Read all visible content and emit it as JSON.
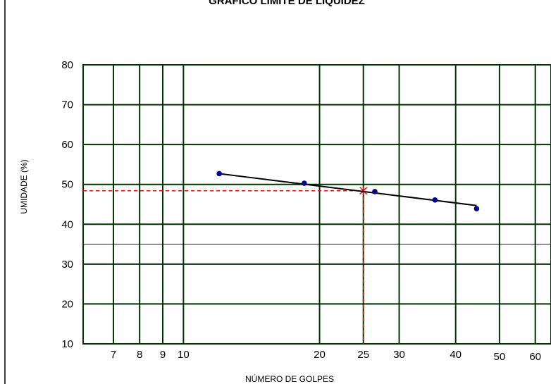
{
  "chart_data": {
    "type": "scatter",
    "title": "GRÁFICO LIMITE DE LIQUIDEZ",
    "xlabel": "NÚMERO DE GOLPES",
    "ylabel": "UMIDADE (%)",
    "x_scale": "log",
    "xlim": [
      6,
      65
    ],
    "ylim": [
      10,
      80
    ],
    "x_ticks": [
      7,
      8,
      9,
      10,
      20,
      25,
      30,
      40,
      50,
      60
    ],
    "y_ticks": [
      10,
      20,
      30,
      40,
      50,
      60,
      70,
      80
    ],
    "grid": true,
    "series": [
      {
        "x": [
          12,
          18.5,
          26.5,
          36,
          44.5
        ],
        "y": [
          52.7,
          50.3,
          48.2,
          46.1,
          43.9
        ],
        "color": "#00008b"
      }
    ],
    "trendline": {
      "x": [
        12,
        44.5
      ],
      "y": [
        52.7,
        44.7
      ],
      "color": "#000000"
    },
    "reference": {
      "x": 25,
      "y": 48.4,
      "color": "#ff0000"
    },
    "horizontal_line": {
      "y": 35,
      "color": "#000000"
    },
    "grid_color": "#003300"
  }
}
